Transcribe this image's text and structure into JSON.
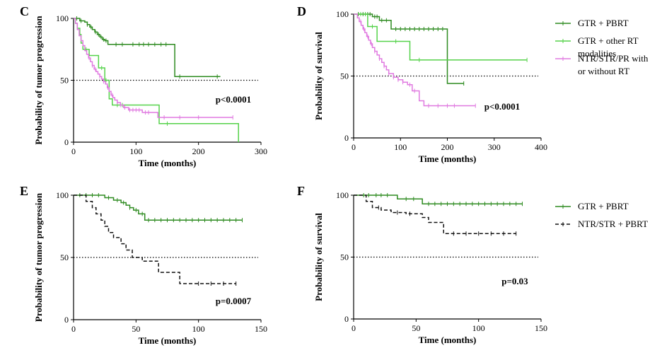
{
  "chart_data": [
    {
      "panel": "C",
      "type": "line",
      "subtype": "kaplan-meier",
      "xlabel": "Time (months)",
      "ylabel": "Probability of tumor progression",
      "xlim": [
        0,
        300
      ],
      "ylim": [
        0,
        100
      ],
      "xticks": [
        0,
        100,
        200,
        300
      ],
      "yticks": [
        0,
        50,
        100
      ],
      "reference_line": 50,
      "annotation": "p<0.0001",
      "series": [
        {
          "name": "GTR + PBRT",
          "color": "#2e8b20",
          "dash": "",
          "x": [
            0,
            10,
            18,
            22,
            26,
            30,
            34,
            38,
            42,
            46,
            50,
            55,
            162,
            235
          ],
          "y": [
            100,
            98,
            97,
            95,
            93,
            91,
            89,
            87,
            85,
            83,
            82,
            79,
            53,
            53
          ],
          "censor": [
            5,
            12,
            22,
            28,
            35,
            40,
            44,
            48,
            52,
            68,
            78,
            95,
            105,
            112,
            120,
            130,
            140,
            148,
            170,
            230
          ]
        },
        {
          "name": "GTR + other RT modalities",
          "color": "#55d24a",
          "dash": "",
          "x": [
            0,
            3,
            6,
            10,
            12,
            15,
            25,
            40,
            50,
            57,
            62,
            88,
            137,
            262,
            264
          ],
          "y": [
            100,
            96,
            92,
            87,
            80,
            75,
            70,
            60,
            50,
            35,
            30,
            30,
            15,
            15,
            0
          ],
          "censor": [
            20,
            45,
            52,
            70,
            78,
            150
          ]
        },
        {
          "name": "NTR/STR/PR with or without RT",
          "color": "#e07ae0",
          "dash": "",
          "x": [
            0,
            3,
            6,
            9,
            12,
            15,
            18,
            21,
            24,
            27,
            30,
            33,
            36,
            39,
            42,
            45,
            48,
            51,
            54,
            57,
            60,
            63,
            66,
            70,
            75,
            80,
            88,
            110,
            135,
            255
          ],
          "y": [
            100,
            96,
            91,
            86,
            82,
            78,
            74,
            71,
            68,
            65,
            62,
            59,
            57,
            55,
            53,
            51,
            49,
            47,
            44,
            41,
            38,
            36,
            34,
            32,
            30,
            28,
            26,
            24,
            20,
            20
          ],
          "censor": [
            25,
            30,
            35,
            42,
            48,
            55,
            62,
            70,
            75,
            82,
            90,
            95,
            100,
            105,
            115,
            120,
            145,
            170,
            200,
            255
          ]
        }
      ]
    },
    {
      "panel": "D",
      "type": "line",
      "subtype": "kaplan-meier",
      "xlabel": "Time (months)",
      "ylabel": "Probability of survival",
      "xlim": [
        0,
        400
      ],
      "ylim": [
        0,
        100
      ],
      "xticks": [
        0,
        100,
        200,
        300,
        400
      ],
      "yticks": [
        0,
        50,
        100
      ],
      "reference_line": 50,
      "annotation": "p<0.0001",
      "series": [
        {
          "name": "GTR + PBRT",
          "color": "#2e8b20",
          "dash": "",
          "x": [
            0,
            40,
            55,
            80,
            200,
            235
          ],
          "y": [
            100,
            98,
            95,
            88,
            44,
            44
          ],
          "censor": [
            10,
            20,
            25,
            30,
            35,
            45,
            50,
            60,
            70,
            90,
            100,
            110,
            120,
            130,
            140,
            150,
            160,
            170,
            180,
            190,
            235
          ]
        },
        {
          "name": "GTR + other RT modalities",
          "color": "#55d24a",
          "dash": "",
          "x": [
            0,
            30,
            50,
            120,
            370
          ],
          "y": [
            100,
            90,
            78,
            63,
            63
          ],
          "censor": [
            15,
            25,
            40,
            90,
            140,
            370
          ]
        },
        {
          "name": "NTR/STR/PR with or without RT",
          "color": "#e07ae0",
          "dash": "",
          "x": [
            0,
            8,
            12,
            16,
            20,
            24,
            28,
            32,
            36,
            40,
            45,
            50,
            55,
            60,
            65,
            70,
            75,
            85,
            95,
            105,
            115,
            125,
            140,
            150,
            260
          ],
          "y": [
            100,
            97,
            94,
            91,
            88,
            85,
            82,
            79,
            76,
            73,
            70,
            67,
            64,
            61,
            58,
            55,
            52,
            49,
            47,
            45,
            43,
            38,
            30,
            26,
            26
          ],
          "censor": [
            15,
            22,
            30,
            38,
            45,
            55,
            65,
            75,
            85,
            95,
            105,
            120,
            130,
            160,
            180,
            200,
            215,
            260
          ]
        }
      ]
    },
    {
      "panel": "E",
      "type": "line",
      "subtype": "kaplan-meier",
      "xlabel": "Time (months)",
      "ylabel": "Probability of tumor progression",
      "xlim": [
        0,
        150
      ],
      "ylim": [
        0,
        100
      ],
      "xticks": [
        0,
        50,
        100,
        150
      ],
      "yticks": [
        0,
        50,
        100
      ],
      "reference_line": 50,
      "annotation": "p=0.0007",
      "series": [
        {
          "name": "GTR + PBRT",
          "color": "#2e8b20",
          "dash": "",
          "x": [
            0,
            25,
            32,
            38,
            42,
            45,
            48,
            52,
            57,
            135
          ],
          "y": [
            100,
            98,
            96,
            94,
            92,
            90,
            88,
            85,
            80,
            80
          ],
          "censor": [
            5,
            10,
            15,
            20,
            28,
            35,
            40,
            45,
            50,
            55,
            60,
            65,
            70,
            75,
            80,
            85,
            90,
            95,
            100,
            105,
            110,
            115,
            120,
            125,
            130,
            135
          ]
        },
        {
          "name": "NTR/STR + PBRT",
          "color": "#111111",
          "dash": "5,3",
          "x": [
            0,
            10,
            15,
            18,
            22,
            25,
            28,
            32,
            38,
            42,
            47,
            55,
            68,
            85,
            130
          ],
          "y": [
            100,
            95,
            90,
            85,
            80,
            75,
            70,
            66,
            61,
            56,
            50,
            47,
            38,
            29,
            29
          ],
          "censor": [
            100,
            110,
            120,
            130
          ]
        }
      ]
    },
    {
      "panel": "F",
      "type": "line",
      "subtype": "kaplan-meier",
      "xlabel": "Time (months)",
      "ylabel": "Probability of survival",
      "xlim": [
        0,
        150
      ],
      "ylim": [
        0,
        100
      ],
      "xticks": [
        0,
        50,
        100,
        150
      ],
      "yticks": [
        0,
        50,
        100
      ],
      "reference_line": 50,
      "annotation": "p=0.03",
      "series": [
        {
          "name": "GTR + PBRT",
          "color": "#2e8b20",
          "dash": "",
          "x": [
            0,
            35,
            55,
            135
          ],
          "y": [
            100,
            97,
            93,
            93
          ],
          "censor": [
            8,
            12,
            18,
            22,
            27,
            42,
            48,
            60,
            65,
            70,
            75,
            80,
            85,
            90,
            95,
            100,
            105,
            110,
            115,
            120,
            125,
            130,
            135
          ]
        },
        {
          "name": "NTR/STR + PBRT",
          "color": "#111111",
          "dash": "5,3",
          "x": [
            0,
            10,
            15,
            22,
            30,
            42,
            55,
            60,
            72,
            130
          ],
          "y": [
            100,
            95,
            90,
            88,
            86,
            85,
            82,
            78,
            69,
            69
          ],
          "censor": [
            20,
            35,
            45,
            80,
            90,
            100,
            110,
            120,
            130
          ]
        }
      ]
    }
  ],
  "legends": [
    {
      "items": [
        {
          "label_lines": [
            "GTR + PBRT"
          ],
          "color": "#2e8b20",
          "dash": ""
        },
        {
          "label_lines": [
            "GTR + other RT",
            "modalities"
          ],
          "color": "#55d24a",
          "dash": ""
        },
        {
          "label_lines": [
            "NTR/STR/PR with",
            "or without RT"
          ],
          "color": "#e07ae0",
          "dash": ""
        }
      ]
    },
    {
      "items": [
        {
          "label_lines": [
            "GTR + PBRT"
          ],
          "color": "#2e8b20",
          "dash": ""
        },
        {
          "label_lines": [
            "NTR/STR + PBRT"
          ],
          "color": "#111111",
          "dash": "5,3"
        }
      ]
    }
  ]
}
